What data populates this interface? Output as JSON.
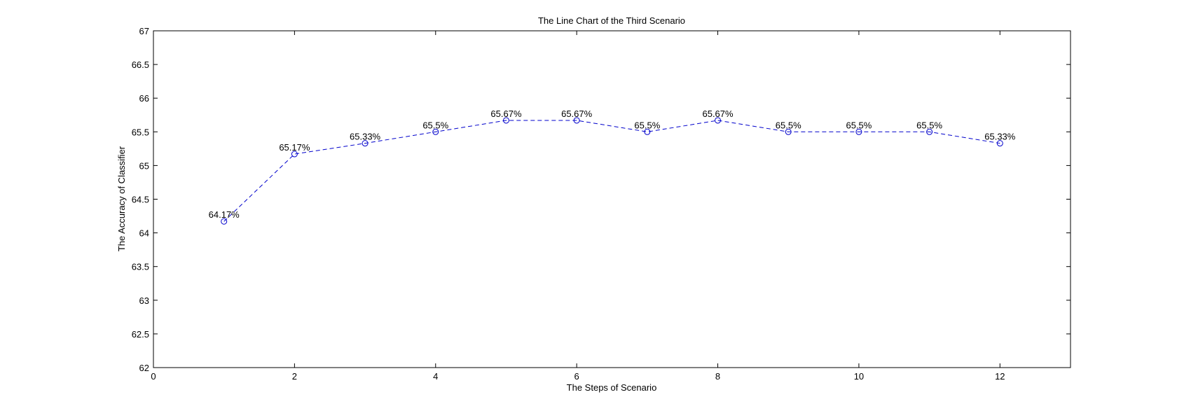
{
  "chart_data": {
    "type": "line",
    "title": "The Line Chart of the Third Scenario",
    "xlabel": "The Steps of Scenario",
    "ylabel": "The Accuracy of Classifier",
    "xlim": [
      0,
      13
    ],
    "ylim": [
      62,
      67
    ],
    "xticks": [
      0,
      2,
      4,
      6,
      8,
      10,
      12
    ],
    "yticks": [
      62,
      62.5,
      63,
      63.5,
      64,
      64.5,
      65,
      65.5,
      66,
      66.5,
      67
    ],
    "grid": false,
    "line_style": "dashed",
    "marker": "circle",
    "series": [
      {
        "color": "#0000cc",
        "x": [
          1,
          2,
          3,
          4,
          5,
          6,
          7,
          8,
          9,
          10,
          11,
          12
        ],
        "values": [
          64.17,
          65.17,
          65.33,
          65.5,
          65.67,
          65.67,
          65.5,
          65.67,
          65.5,
          65.5,
          65.5,
          65.33
        ],
        "data_labels": [
          "64.17%",
          "65.17%",
          "65.33%",
          "65.5%",
          "65.67%",
          "65.67%",
          "65.5%",
          "65.67%",
          "65.5%",
          "65.5%",
          "65.5%",
          "65.33%"
        ]
      }
    ]
  }
}
